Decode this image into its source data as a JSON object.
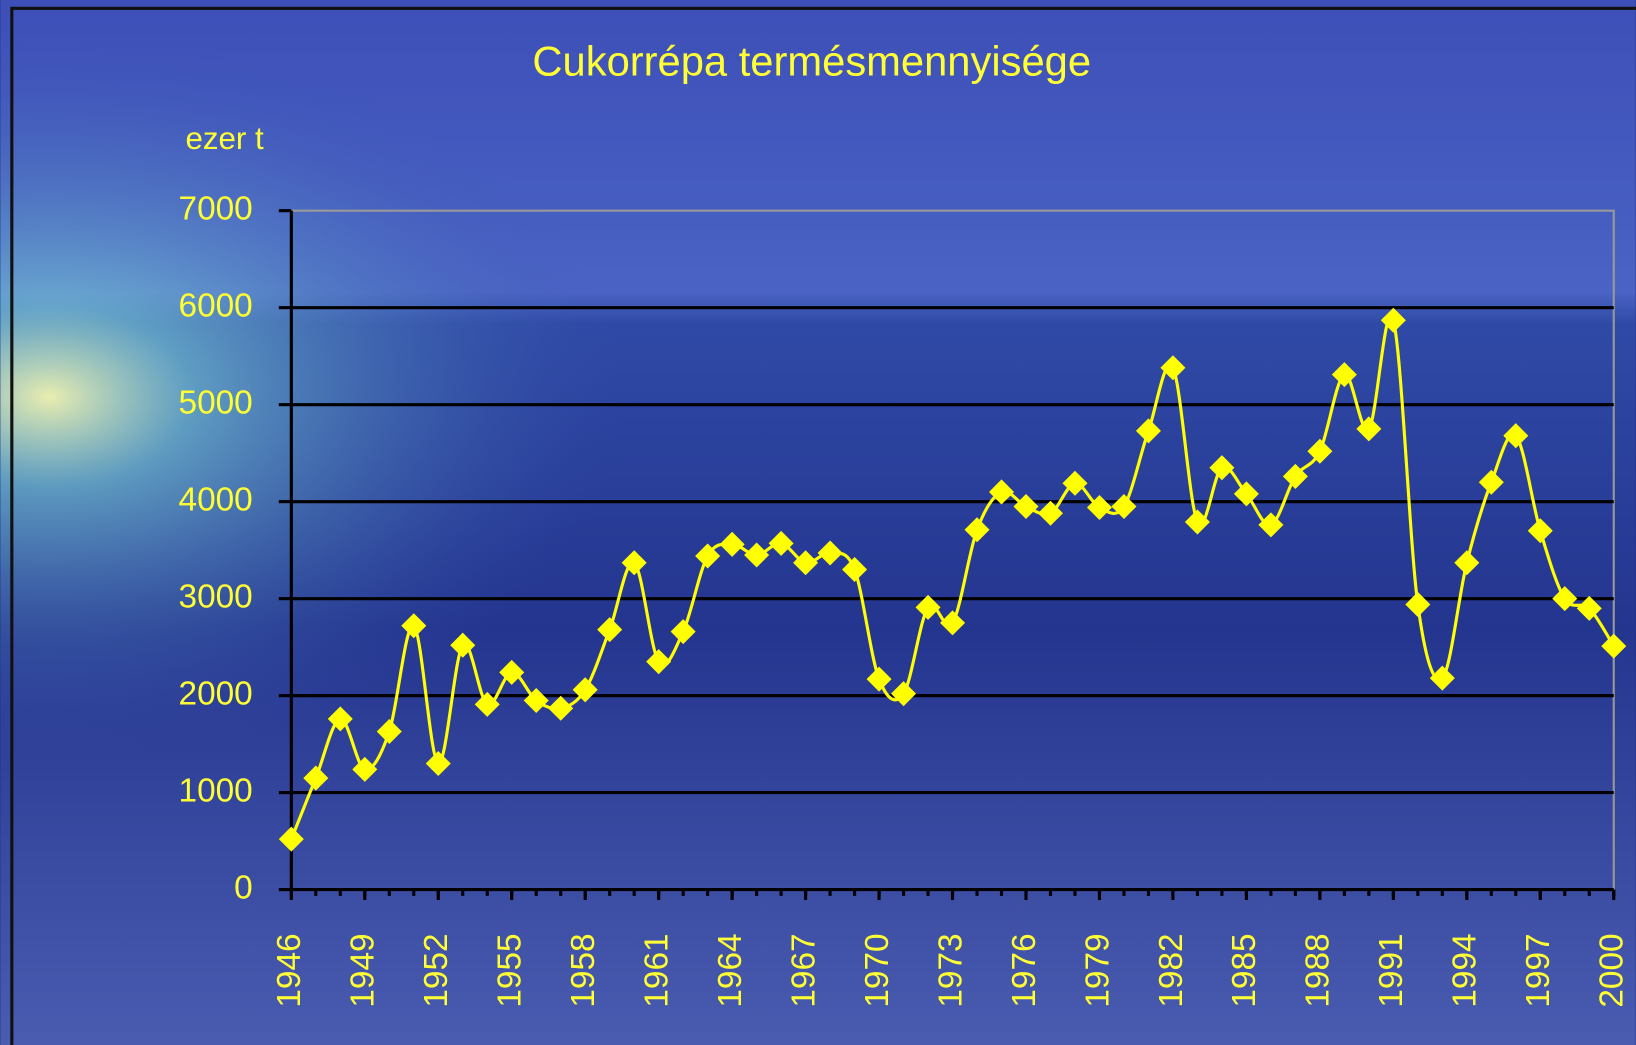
{
  "chart_data": {
    "type": "line",
    "title": "Cukorrépa termésmennyisége",
    "y_label": "ezer t",
    "x": [
      1946,
      1947,
      1948,
      1949,
      1950,
      1951,
      1952,
      1953,
      1954,
      1955,
      1956,
      1957,
      1958,
      1959,
      1960,
      1961,
      1962,
      1963,
      1964,
      1965,
      1966,
      1967,
      1968,
      1969,
      1970,
      1971,
      1972,
      1973,
      1974,
      1975,
      1976,
      1977,
      1978,
      1979,
      1980,
      1981,
      1982,
      1983,
      1984,
      1985,
      1986,
      1987,
      1988,
      1989,
      1990,
      1991,
      1992,
      1993,
      1994,
      1995,
      1996,
      1997,
      1998,
      1999,
      2000
    ],
    "values": [
      520,
      1150,
      1760,
      1240,
      1630,
      2720,
      1300,
      2520,
      1910,
      2240,
      1950,
      1870,
      2060,
      2680,
      3370,
      2350,
      2660,
      3440,
      3560,
      3450,
      3570,
      3370,
      3470,
      3300,
      2170,
      2020,
      2910,
      2750,
      3710,
      4100,
      3950,
      3880,
      4190,
      3940,
      3950,
      4730,
      5380,
      3790,
      4350,
      4080,
      3760,
      4260,
      4520,
      5310,
      4750,
      5870,
      2940,
      2180,
      3370,
      4200,
      4680,
      3700,
      3000,
      2900,
      2510
    ],
    "color": "#ffff00",
    "xlim": [
      1946,
      2000
    ],
    "xticks": [
      1946,
      1949,
      1952,
      1955,
      1958,
      1961,
      1964,
      1967,
      1970,
      1973,
      1976,
      1979,
      1982,
      1985,
      1988,
      1991,
      1994,
      1997,
      2000
    ],
    "ylim": [
      0,
      7000
    ],
    "yticks": [
      0,
      1000,
      2000,
      3000,
      4000,
      5000,
      6000,
      7000
    ],
    "grid": true
  }
}
